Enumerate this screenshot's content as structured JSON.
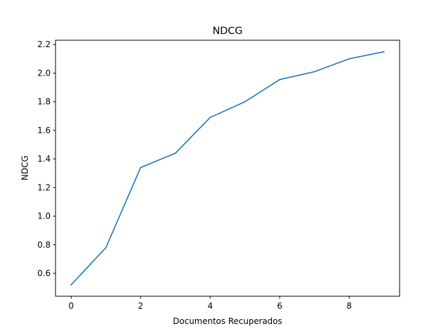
{
  "chart_data": {
    "type": "line",
    "title": "NDCG",
    "xlabel": "Documentos Recuperados",
    "ylabel": "NDCG",
    "xlim": [
      -0.45,
      9.45
    ],
    "ylim": [
      0.44,
      2.23
    ],
    "xticks": [
      0,
      2,
      4,
      6,
      8
    ],
    "yticks": [
      0.6,
      0.8,
      1.0,
      1.2,
      1.4,
      1.6,
      1.8,
      2.0,
      2.2
    ],
    "xtick_labels": [
      "0",
      "2",
      "4",
      "6",
      "8"
    ],
    "ytick_labels": [
      "0.6",
      "0.8",
      "1.0",
      "1.2",
      "1.4",
      "1.6",
      "1.8",
      "2.0",
      "2.2"
    ],
    "grid": false,
    "series": [
      {
        "color": "#1f77b4",
        "x": [
          0,
          1,
          2,
          3,
          4,
          5,
          6,
          7,
          8,
          9
        ],
        "y": [
          0.52,
          0.78,
          1.34,
          1.44,
          1.69,
          1.8,
          1.955,
          2.01,
          2.1,
          2.15
        ]
      }
    ]
  }
}
